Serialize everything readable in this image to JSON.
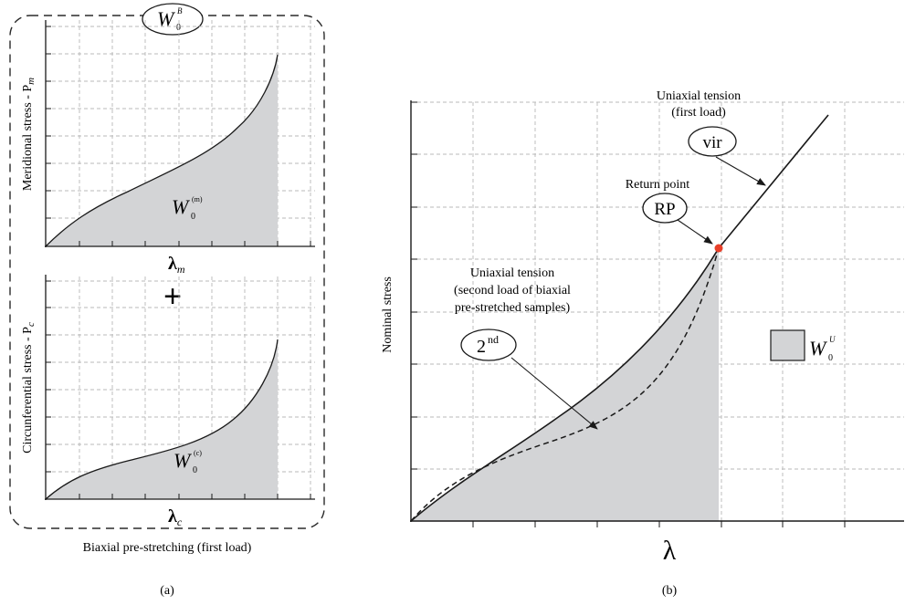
{
  "colors": {
    "fill": "#d3d4d6",
    "curve": "#1a1a1a",
    "grid": "#b8b8b8",
    "return_point": "#e8402a",
    "frame": "#2a2a2a"
  },
  "panel_a": {
    "caption": "(a)",
    "energy_badge": {
      "base": "W",
      "sub": "0",
      "sup": "B"
    },
    "plus_sign": "+",
    "bottom_label": "Biaxial pre-stretching (first load)",
    "top_plot": {
      "ylabel": "Meridional stress - P",
      "ylabel_sub": "m",
      "xlabel": "λ",
      "xlabel_sub": "m",
      "area_label": {
        "base": "W",
        "sub": "0",
        "sup": "(m)"
      }
    },
    "bottom_plot": {
      "ylabel": "Circunferential stress - P",
      "ylabel_sub": "c",
      "xlabel": "λ",
      "xlabel_sub": "c",
      "area_label": {
        "base": "W",
        "sub": "0",
        "sup": "(c)"
      }
    }
  },
  "panel_b": {
    "caption": "(b)",
    "ylabel": "Nominal stress",
    "xlabel": "λ",
    "annotations": {
      "first_load": [
        "Uniaxial tension",
        "(first load)"
      ],
      "vir_badge": "vir",
      "return_point": "Return point",
      "rp_badge": "RP",
      "second_load": [
        "Uniaxial tension",
        "(second load of biaxial",
        "pre-stretched samples)"
      ],
      "second_badge": {
        "base": "2",
        "sup": "nd"
      }
    },
    "legend": {
      "base": "W",
      "sub": "0",
      "sup": "U"
    }
  }
}
